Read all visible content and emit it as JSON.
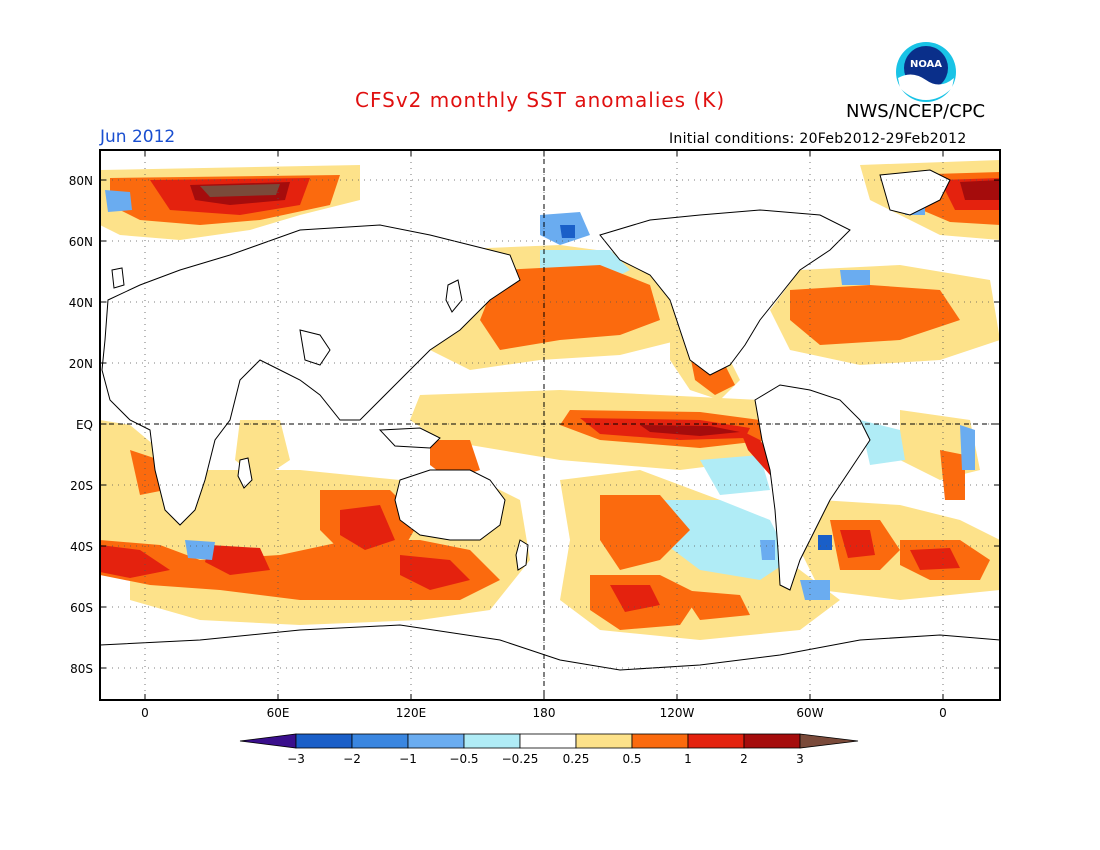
{
  "header": {
    "title": "CFSv2 monthly SST anomalies (K)",
    "organization": "NWS/NCEP/CPC",
    "month": "Jun 2012",
    "initial_conditions": "Initial conditions: 20Feb2012-29Feb2012",
    "logo_text": "NOAA"
  },
  "map": {
    "lat_labels": [
      "80N",
      "60N",
      "40N",
      "20N",
      "EQ",
      "20S",
      "40S",
      "60S",
      "80S"
    ],
    "lon_labels": [
      "0",
      "60E",
      "120E",
      "180",
      "120W",
      "60W",
      "0"
    ]
  },
  "colorbar": {
    "tick_labels": [
      "-3",
      "-2",
      "-1",
      "-0.5",
      "-0.25",
      "0.25",
      "0.5",
      "1",
      "2",
      "3"
    ],
    "colors": {
      "lt_-3": "#3a0f8c",
      "-3_-2": "#1a5fc8",
      "-2_-1": "#3a86e0",
      "-1_-0.5": "#6aacf0",
      "-0.5_-0.25": "#b0ecf6",
      "-0.25_0.25": "#ffffff",
      "0.25_0.5": "#fde28a",
      "0.5_1": "#fb6a0e",
      "1_2": "#e4220e",
      "2_3": "#a50c0c",
      "gt_3": "#7a4a3a"
    }
  }
}
